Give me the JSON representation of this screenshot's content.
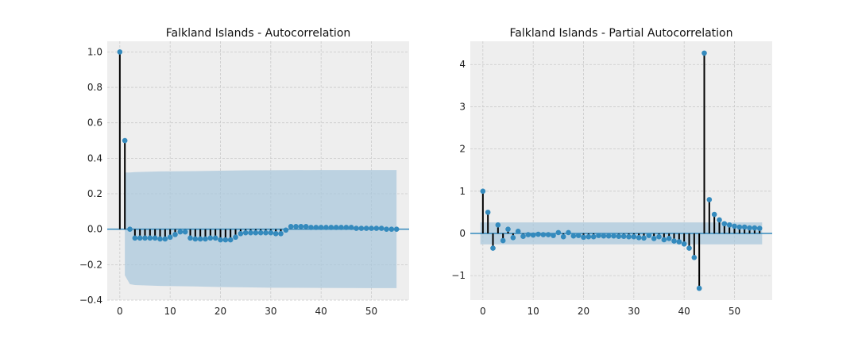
{
  "chart_data": [
    {
      "type": "stem",
      "title": "Falkland Islands - Autocorrelation",
      "xlim": [
        -2.5,
        57.5
      ],
      "ylim": [
        -0.4,
        1.06
      ],
      "xticks": [
        0,
        10,
        20,
        30,
        40,
        50
      ],
      "yticks": [
        -0.4,
        -0.2,
        0.0,
        0.2,
        0.4,
        0.6,
        0.8,
        1.0
      ],
      "ytick_labels": [
        "−0.4",
        "−0.2",
        "0.0",
        "0.2",
        "0.4",
        "0.6",
        "0.8",
        "1.0"
      ],
      "grid": true,
      "lags": [
        0,
        1,
        2,
        3,
        4,
        5,
        6,
        7,
        8,
        9,
        10,
        11,
        12,
        13,
        14,
        15,
        16,
        17,
        18,
        19,
        20,
        21,
        22,
        23,
        24,
        25,
        26,
        27,
        28,
        29,
        30,
        31,
        32,
        33,
        34,
        35,
        36,
        37,
        38,
        39,
        40,
        41,
        42,
        43,
        44,
        45,
        46,
        47,
        48,
        49,
        50,
        51,
        52,
        53,
        54,
        55
      ],
      "values": [
        1.0,
        0.5,
        0.0,
        -0.05,
        -0.05,
        -0.05,
        -0.05,
        -0.05,
        -0.055,
        -0.055,
        -0.045,
        -0.03,
        -0.015,
        -0.015,
        -0.05,
        -0.055,
        -0.055,
        -0.055,
        -0.05,
        -0.05,
        -0.06,
        -0.06,
        -0.06,
        -0.045,
        -0.025,
        -0.02,
        -0.02,
        -0.02,
        -0.02,
        -0.02,
        -0.02,
        -0.025,
        -0.025,
        -0.005,
        0.015,
        0.015,
        0.015,
        0.015,
        0.01,
        0.01,
        0.01,
        0.01,
        0.01,
        0.01,
        0.01,
        0.01,
        0.01,
        0.005,
        0.005,
        0.005,
        0.005,
        0.005,
        0.005,
        0.0,
        0.0,
        0.0
      ],
      "confidence_band": {
        "lags": [
          0,
          1,
          1,
          2,
          3,
          8,
          15,
          20,
          25,
          30,
          40,
          50,
          55
        ],
        "upper": [
          0.0,
          0.0,
          0.32,
          0.32,
          0.322,
          0.326,
          0.328,
          0.33,
          0.332,
          0.333,
          0.334,
          0.334,
          0.334
        ],
        "lower": [
          0.0,
          0.0,
          -0.26,
          -0.31,
          -0.315,
          -0.32,
          -0.323,
          -0.326,
          -0.328,
          -0.33,
          -0.331,
          -0.332,
          -0.332
        ]
      }
    },
    {
      "type": "stem",
      "title": "Falkland Islands - Partial Autocorrelation",
      "xlim": [
        -2.5,
        57.5
      ],
      "ylim": [
        -1.58,
        4.55
      ],
      "xticks": [
        0,
        10,
        20,
        30,
        40,
        50
      ],
      "yticks": [
        -1,
        0,
        1,
        2,
        3,
        4
      ],
      "ytick_labels": [
        "−1",
        "0",
        "1",
        "2",
        "3",
        "4"
      ],
      "grid": true,
      "lags": [
        0,
        1,
        2,
        3,
        4,
        5,
        6,
        7,
        8,
        9,
        10,
        11,
        12,
        13,
        14,
        15,
        16,
        17,
        18,
        19,
        20,
        21,
        22,
        23,
        24,
        25,
        26,
        27,
        28,
        29,
        30,
        31,
        32,
        33,
        34,
        35,
        36,
        37,
        38,
        39,
        40,
        41,
        42,
        43,
        44,
        45,
        46,
        47,
        48,
        49,
        50,
        51,
        52,
        53,
        54,
        55
      ],
      "values": [
        1.0,
        0.5,
        -0.35,
        0.2,
        -0.17,
        0.1,
        -0.1,
        0.05,
        -0.07,
        -0.03,
        -0.04,
        -0.02,
        -0.03,
        -0.03,
        -0.05,
        0.02,
        -0.08,
        0.02,
        -0.06,
        -0.05,
        -0.09,
        -0.08,
        -0.08,
        -0.05,
        -0.06,
        -0.06,
        -0.06,
        -0.07,
        -0.07,
        -0.08,
        -0.08,
        -0.1,
        -0.11,
        -0.05,
        -0.12,
        -0.08,
        -0.15,
        -0.12,
        -0.18,
        -0.2,
        -0.25,
        -0.35,
        -0.57,
        -1.3,
        4.27,
        0.8,
        0.45,
        0.32,
        0.23,
        0.2,
        0.17,
        0.15,
        0.15,
        0.13,
        0.13,
        0.12
      ],
      "confidence_band": {
        "lags": [
          -0.5,
          55.5
        ],
        "upper": [
          0.26,
          0.26
        ],
        "lower": [
          -0.26,
          -0.26
        ]
      }
    }
  ]
}
